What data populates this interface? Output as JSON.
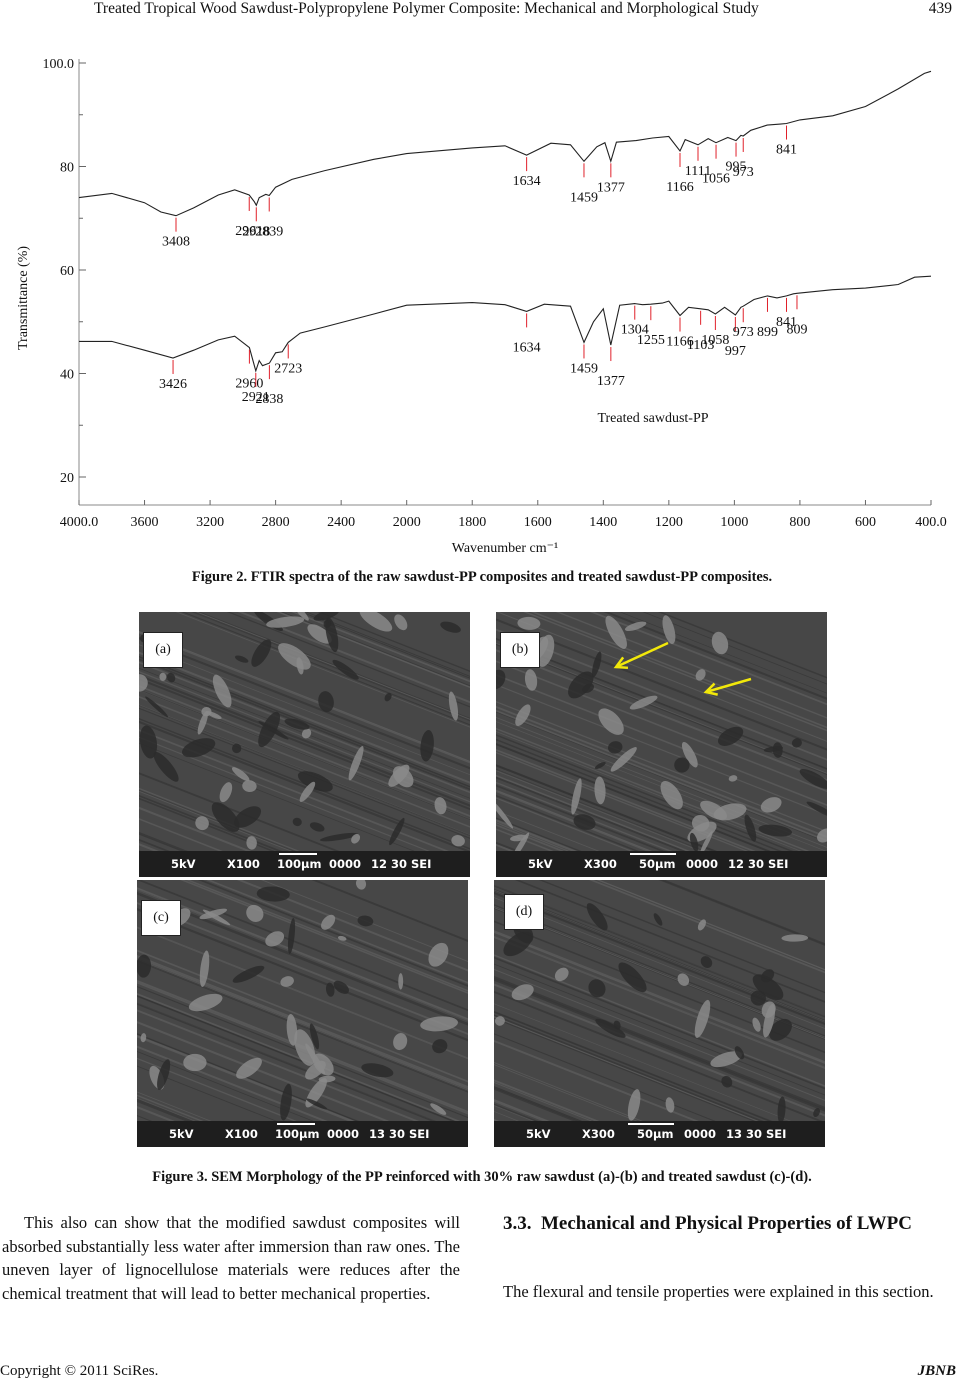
{
  "header": {
    "title": "Treated Tropical Wood Sawdust-Polypropylene Polymer Composite: Mechanical and Morphological Study",
    "page_number": "439"
  },
  "figure2": {
    "caption": "Figure 2. FTIR spectra of the raw sawdust-PP composites and treated sawdust-PP composites.",
    "chart_data": {
      "type": "line",
      "xlabel": "Wavenumber cm⁻¹",
      "ylabel": "Transmittance (%)",
      "xlim": [
        4000,
        400
      ],
      "ylim": [
        15,
        100
      ],
      "x_ticks": [
        "4000.0",
        "3600",
        "3200",
        "2800",
        "2400",
        "2000",
        "1800",
        "1600",
        "1400",
        "1200",
        "1000",
        "800",
        "600",
        "400.0"
      ],
      "y_ticks": [
        "100.0",
        "80",
        "60",
        "40",
        "20"
      ],
      "annotations": [
        "Treated sawdust-PP"
      ],
      "series": [
        {
          "peaks": [
            "3408",
            "2961",
            "2918",
            "2839",
            "1634",
            "1459",
            "1377",
            "1166",
            "1111",
            "1056",
            "995",
            "973",
            "841"
          ],
          "points": [
            [
              4000,
              74
            ],
            [
              3800,
              74.8
            ],
            [
              3600,
              73
            ],
            [
              3500,
              71.2
            ],
            [
              3408,
              70.5
            ],
            [
              3300,
              72
            ],
            [
              3150,
              74.5
            ],
            [
              3050,
              75.5
            ],
            [
              2961,
              74.5
            ],
            [
              2930,
              73.2
            ],
            [
              2918,
              72.5
            ],
            [
              2900,
              74
            ],
            [
              2860,
              74.6
            ],
            [
              2839,
              74.4
            ],
            [
              2800,
              76
            ],
            [
              2700,
              77.5
            ],
            [
              2500,
              79.2
            ],
            [
              2200,
              81.4
            ],
            [
              2000,
              82.5
            ],
            [
              1800,
              83.6
            ],
            [
              1700,
              84
            ],
            [
              1634,
              82.2
            ],
            [
              1560,
              84.5
            ],
            [
              1500,
              84.2
            ],
            [
              1459,
              81
            ],
            [
              1420,
              83.8
            ],
            [
              1395,
              84.6
            ],
            [
              1377,
              81
            ],
            [
              1360,
              84.7
            ],
            [
              1300,
              85
            ],
            [
              1250,
              85.5
            ],
            [
              1200,
              85.8
            ],
            [
              1166,
              83
            ],
            [
              1150,
              85.2
            ],
            [
              1111,
              84.2
            ],
            [
              1080,
              85.4
            ],
            [
              1056,
              84.6
            ],
            [
              1020,
              85.6
            ],
            [
              995,
              85
            ],
            [
              980,
              86
            ],
            [
              973,
              85.9
            ],
            [
              950,
              87
            ],
            [
              900,
              88
            ],
            [
              860,
              88.2
            ],
            [
              841,
              88.3
            ],
            [
              800,
              89
            ],
            [
              700,
              89.8
            ],
            [
              600,
              91.6
            ],
            [
              500,
              95
            ],
            [
              420,
              98
            ],
            [
              400,
              98.4
            ]
          ]
        },
        {
          "name": "Treated sawdust-PP",
          "peaks": [
            "3426",
            "2960",
            "2921",
            "2838",
            "2723",
            "1634",
            "1459",
            "1377",
            "1304",
            "1255",
            "1166",
            "1103",
            "1058",
            "997",
            "973",
            "899",
            "841",
            "809"
          ],
          "points": [
            [
              4000,
              46.2
            ],
            [
              3800,
              46.2
            ],
            [
              3600,
              44.5
            ],
            [
              3426,
              43
            ],
            [
              3300,
              44.5
            ],
            [
              3150,
              46.5
            ],
            [
              3050,
              47.2
            ],
            [
              2960,
              45
            ],
            [
              2921,
              40.5
            ],
            [
              2900,
              42.5
            ],
            [
              2880,
              41.5
            ],
            [
              2838,
              42
            ],
            [
              2800,
              44
            ],
            [
              2760,
              44.2
            ],
            [
              2723,
              46
            ],
            [
              2650,
              47.8
            ],
            [
              2500,
              49
            ],
            [
              2200,
              51.5
            ],
            [
              2000,
              53.2
            ],
            [
              1800,
              53.7
            ],
            [
              1700,
              53.3
            ],
            [
              1634,
              52
            ],
            [
              1580,
              53.4
            ],
            [
              1500,
              53
            ],
            [
              1459,
              46
            ],
            [
              1430,
              50
            ],
            [
              1400,
              52.5
            ],
            [
              1377,
              45.5
            ],
            [
              1350,
              53.2
            ],
            [
              1304,
              53.5
            ],
            [
              1280,
              53.3
            ],
            [
              1255,
              53.4
            ],
            [
              1220,
              53.6
            ],
            [
              1200,
              54
            ],
            [
              1166,
              51.2
            ],
            [
              1140,
              52.8
            ],
            [
              1103,
              52.5
            ],
            [
              1080,
              52.3
            ],
            [
              1058,
              51.5
            ],
            [
              1030,
              52.8
            ],
            [
              997,
              51.3
            ],
            [
              980,
              52.8
            ],
            [
              973,
              53
            ],
            [
              940,
              54.3
            ],
            [
              899,
              55
            ],
            [
              870,
              54.6
            ],
            [
              841,
              55
            ],
            [
              820,
              55.4
            ],
            [
              809,
              55.5
            ],
            [
              700,
              56.2
            ],
            [
              600,
              56.5
            ],
            [
              500,
              57.2
            ],
            [
              450,
              58.6
            ],
            [
              400,
              58.8
            ]
          ]
        }
      ]
    }
  },
  "figure3": {
    "caption": "Figure 3. SEM Morphology of the PP reinforced with 30% raw sawdust (a)-(b) and treated sawdust (c)-(d).",
    "panels": [
      {
        "label": "(a)",
        "kv": "5kV",
        "mag": "X100",
        "scale": "100μm",
        "code": "0000",
        "info": "12 30 SEI"
      },
      {
        "label": "(b)",
        "kv": "5kV",
        "mag": "X300",
        "scale": "50μm",
        "code": "0000",
        "info": "12 30 SEI"
      },
      {
        "label": "(c)",
        "kv": "5kV",
        "mag": "X100",
        "scale": "100μm",
        "code": "0000",
        "info": "13 30 SEI"
      },
      {
        "label": "(d)",
        "kv": "5kV",
        "mag": "X300",
        "scale": "50μm",
        "code": "0000",
        "info": "13 30 SEI"
      }
    ]
  },
  "body": {
    "left_paragraph": "This also can show that the modified sawdust composites will absorbed substantially less water after immersion than raw ones. The uneven layer of lignocellulose materials were reduces after the chemical treatment that will lead to better mechanical properties.",
    "section_number": "3.3.",
    "section_title": "Mechanical and Physical Properties of LWPC",
    "right_paragraph": "The flexural and tensile properties were explained in this section."
  },
  "footer": {
    "copyright": "Copyright © 2011 SciRes.",
    "journal": "JBNB"
  },
  "colors": {
    "text": "#111111",
    "peak_marker": "#e0202a",
    "arrow": "#f2e80a",
    "sem_bar": "#1e1e1e"
  }
}
